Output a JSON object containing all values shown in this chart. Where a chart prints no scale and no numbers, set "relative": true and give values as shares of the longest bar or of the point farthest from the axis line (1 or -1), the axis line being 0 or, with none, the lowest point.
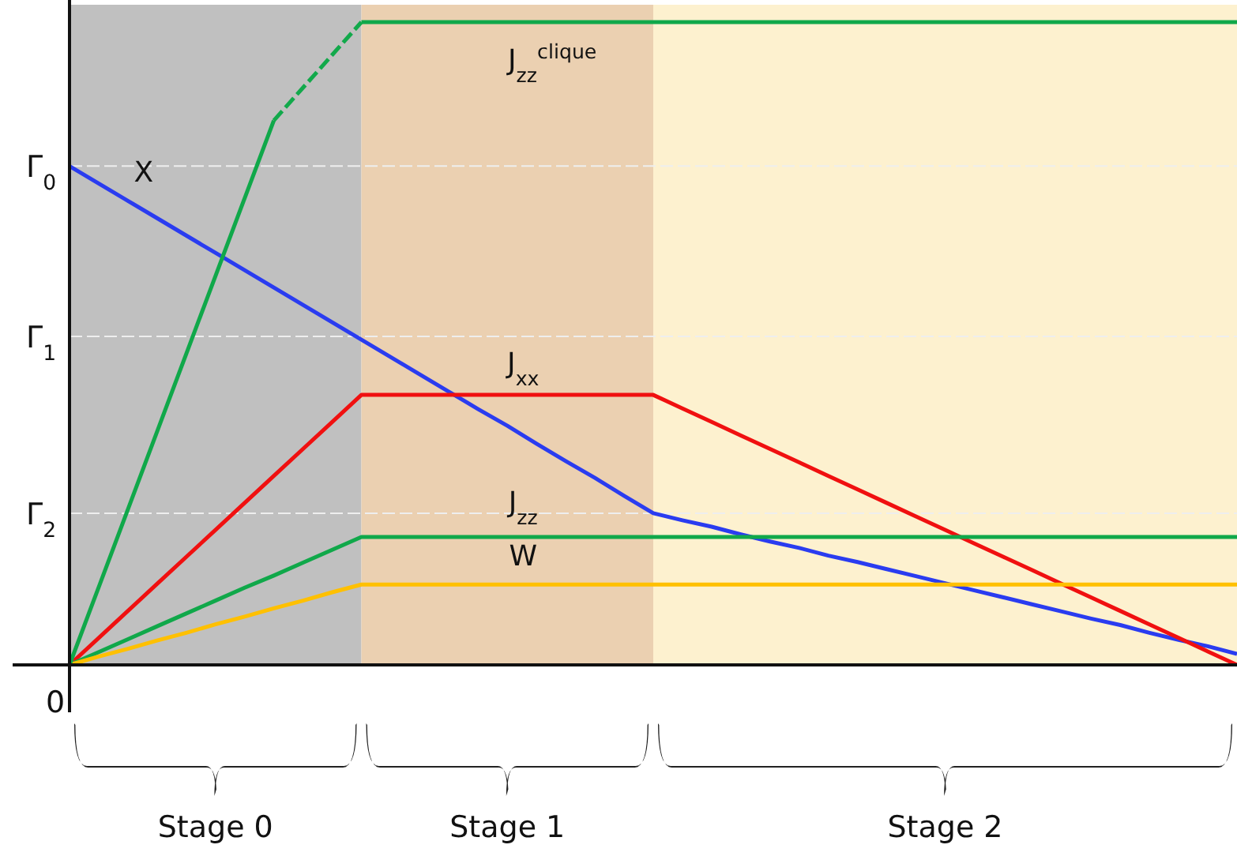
{
  "chart_data": {
    "type": "line",
    "relative": true,
    "categories": [
      null,
      null,
      null,
      null,
      null,
      null,
      null,
      null,
      null,
      null,
      null,
      null,
      null,
      null,
      null,
      null,
      null,
      null,
      null,
      null,
      null,
      null,
      null,
      null,
      null,
      null,
      null,
      null,
      null,
      null,
      null,
      null,
      null,
      null,
      null,
      null,
      null,
      null,
      null,
      null,
      null
    ],
    "ref_lines": [
      {
        "axis": "y",
        "value": 0.776,
        "label": "Γ$_{0}$",
        "line_style": "dashed"
      },
      {
        "axis": "y",
        "value": 0.511,
        "label": "Γ$_{1}$",
        "line_style": "dashed"
      },
      {
        "axis": "y",
        "value": 0.236,
        "label": "Γ$_{2}$",
        "line_style": "dashed"
      }
    ],
    "annotations": [
      "0",
      "Stage 0",
      "Stage 1",
      "Stage 2"
    ],
    "series": [
      {
        "name": "X",
        "color": "#2a3cf0",
        "values": [
          0.776,
          0.749,
          0.722,
          0.695,
          0.668,
          0.641,
          0.614,
          0.587,
          0.56,
          0.533,
          0.506,
          0.479,
          0.452,
          0.425,
          0.398,
          0.372,
          0.344,
          0.317,
          0.291,
          0.263,
          0.236,
          0.225,
          0.215,
          0.203,
          0.192,
          0.182,
          0.17,
          0.16,
          0.149,
          0.138,
          0.127,
          0.116,
          0.105,
          0.094,
          0.083,
          0.072,
          0.062,
          0.05,
          0.039,
          0.029,
          0.017
        ]
      },
      {
        "name": "J$_{xx}$",
        "color": "#f01010",
        "values": [
          0,
          0.042,
          0.084,
          0.126,
          0.168,
          0.21,
          0.252,
          0.294,
          0.336,
          0.378,
          0.42,
          0.42,
          0.42,
          0.42,
          0.42,
          0.42,
          0.42,
          0.42,
          0.42,
          0.42,
          0.42,
          0.399,
          0.378,
          0.357,
          0.336,
          0.315,
          0.294,
          0.273,
          0.252,
          0.231,
          0.21,
          0.189,
          0.168,
          0.147,
          0.126,
          0.105,
          0.084,
          0.063,
          0.042,
          0.021,
          0
        ]
      },
      {
        "name": "J$_{zz}$",
        "color": "#10a84a",
        "values": [
          0,
          0.02,
          0.04,
          0.06,
          0.08,
          0.1,
          0.12,
          0.139,
          0.159,
          0.179,
          0.199,
          0.199,
          0.199,
          0.199,
          0.199,
          0.199,
          0.199,
          0.199,
          0.199,
          0.199,
          0.199,
          0.199,
          0.199,
          0.199,
          0.199,
          0.199,
          0.199,
          0.199,
          0.199,
          0.199,
          0.199,
          0.199,
          0.199,
          0.199,
          0.199,
          0.199,
          0.199,
          0.199,
          0.199,
          0.199,
          0.199
        ]
      },
      {
        "name": "W",
        "color": "#ffc000",
        "values": [
          0,
          0.013,
          0.025,
          0.038,
          0.05,
          0.063,
          0.075,
          0.088,
          0.1,
          0.113,
          0.125,
          0.125,
          0.125,
          0.125,
          0.125,
          0.125,
          0.125,
          0.125,
          0.125,
          0.125,
          0.125,
          0.125,
          0.125,
          0.125,
          0.125,
          0.125,
          0.125,
          0.125,
          0.125,
          0.125,
          0.125,
          0.125,
          0.125,
          0.125,
          0.125,
          0.125,
          0.125,
          0.125,
          0.125,
          0.125,
          0.125
        ]
      },
      {
        "name": "J$_{zz}$$^{clique}$",
        "color": "#10a84a",
        "values": [
          0,
          0.121,
          0.242,
          0.363,
          0.484,
          0.605,
          0.726,
          0.847,
          null,
          null,
          1,
          1,
          1,
          1,
          1,
          1,
          1,
          1,
          1,
          1,
          1,
          1,
          1,
          1,
          1,
          1,
          1,
          1,
          1,
          1,
          1,
          1,
          1,
          1,
          1,
          1,
          1,
          1,
          1,
          1,
          1
        ]
      },
      {
        "color": "#12a94b",
        "line_style": "dashed",
        "values": [
          null,
          null,
          null,
          null,
          null,
          null,
          null,
          0.847,
          0.898,
          0.949,
          1,
          null,
          null,
          null,
          null,
          null,
          null,
          null,
          null,
          null,
          null,
          null,
          null,
          null,
          null,
          null,
          null,
          null,
          null,
          null,
          null,
          null,
          null,
          null,
          null,
          null,
          null,
          null,
          null,
          null,
          null
        ]
      }
    ]
  }
}
